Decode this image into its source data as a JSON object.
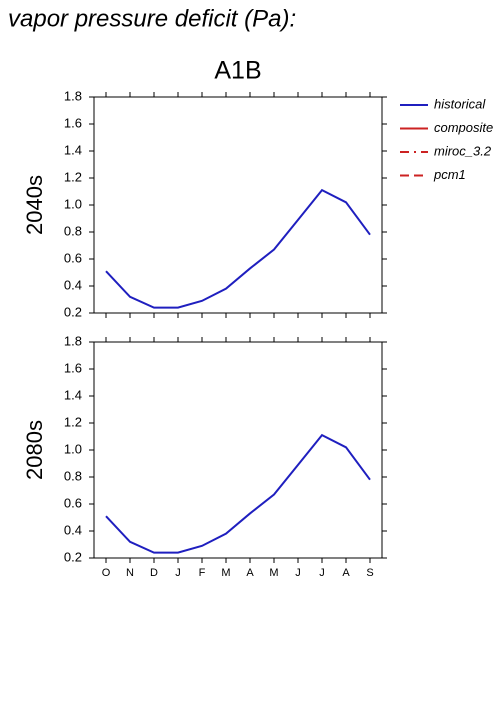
{
  "chart_data": [
    {
      "type": "line",
      "title": "vapor pressure deficit (Pa):",
      "subtitle": "A1B",
      "ylabel": "2040s",
      "categories": [
        "O",
        "N",
        "D",
        "J",
        "F",
        "M",
        "A",
        "M",
        "J",
        "J",
        "A",
        "S"
      ],
      "series": [
        {
          "name": "historical",
          "color": "#1f1fbf",
          "dash": "solid",
          "values": [
            0.51,
            0.32,
            0.24,
            0.24,
            0.29,
            0.38,
            0.53,
            0.67,
            0.89,
            1.11,
            1.02,
            0.78
          ]
        },
        {
          "name": "composite",
          "color": "#cc2222",
          "dash": "solid",
          "values": [
            null,
            null,
            null,
            null,
            null,
            null,
            null,
            null,
            null,
            null,
            null,
            null
          ]
        },
        {
          "name": "miroc_3.2",
          "color": "#cc2222",
          "dash": "dashdot",
          "values": [
            null,
            null,
            null,
            null,
            null,
            null,
            null,
            null,
            null,
            null,
            null,
            null
          ]
        },
        {
          "name": "pcm1",
          "color": "#cc2222",
          "dash": "dashed",
          "values": [
            null,
            null,
            null,
            null,
            null,
            null,
            null,
            null,
            null,
            null,
            null,
            null
          ]
        }
      ],
      "ylim": [
        0.2,
        1.8
      ],
      "yticks": [
        0.2,
        0.4,
        0.6,
        0.8,
        {
          "value": 1,
          "label": "1.0"
        },
        1.2,
        1.4,
        1.6,
        1.8
      ]
    },
    {
      "type": "line",
      "ylabel": "2080s",
      "categories": [
        "O",
        "N",
        "D",
        "J",
        "F",
        "M",
        "A",
        "M",
        "J",
        "J",
        "A",
        "S"
      ],
      "series": [
        {
          "name": "historical",
          "color": "#1f1fbf",
          "dash": "solid",
          "values": [
            0.51,
            0.32,
            0.24,
            0.24,
            0.29,
            0.38,
            0.53,
            0.67,
            0.89,
            1.11,
            1.02,
            0.78
          ]
        }
      ],
      "ylim": [
        0.2,
        1.8
      ],
      "yticks": [
        0.2,
        0.4,
        0.6,
        0.8,
        {
          "value": 1,
          "label": "1.0"
        },
        1.2,
        1.4,
        1.6,
        1.8
      ]
    }
  ]
}
